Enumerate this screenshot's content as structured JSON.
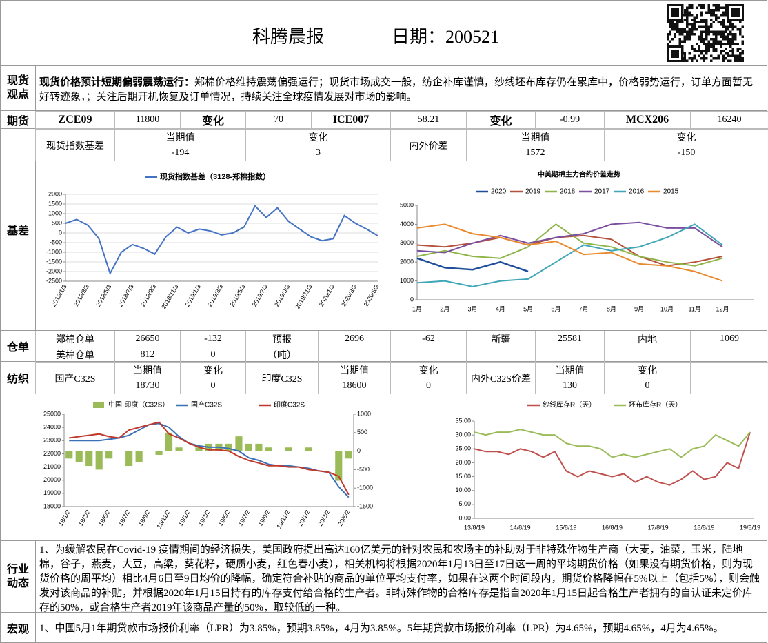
{
  "header": {
    "title": "科腾晨报",
    "date": "日期：200521"
  },
  "spot": {
    "label": "现货观点",
    "lead": "现货价格预计短期偏弱震荡运行：",
    "text": "郑棉价格维持震荡偏强运行；现货市场成交一般，纺企补库谨慎，纱线坯布库存仍在累库中，价格弱势运行，订单方面暂无好转迹象，；关注后期开机恢复及订单情况，持续关注全球疫情发展对市场的影响。"
  },
  "futures": {
    "label": "期货",
    "cells": [
      "ZCE09",
      "11800",
      "变化",
      "70",
      "ICE007",
      "58.21",
      "变化",
      "-0.99",
      "MCX206",
      "16240"
    ]
  },
  "basis": {
    "label": "基差",
    "name": "现货指数基差",
    "name2": "内外价差",
    "head": [
      "当期值",
      "变化",
      "当期值",
      "变化"
    ],
    "values": [
      "-194",
      "3",
      "1572",
      "-150"
    ]
  },
  "warehouse": {
    "label": "仓单",
    "rows": [
      [
        "郑棉仓单",
        "26650",
        "-132",
        "预报",
        "2696",
        "-62",
        "新疆",
        "25581",
        "内地",
        "1069"
      ],
      [
        "美棉仓单",
        "812",
        "0",
        "（吨）"
      ]
    ]
  },
  "textile": {
    "label": "纺织",
    "names": [
      "国产C32S",
      "印度C32S",
      "内外C32S价差"
    ],
    "head": [
      "当期值",
      "变化",
      "当期值",
      "变化",
      "当期值",
      "变化"
    ],
    "values": [
      "18730",
      "0",
      "18600",
      "0",
      "130",
      "0"
    ]
  },
  "industry": {
    "label": "行业动态",
    "text": "1、为缓解农民在Covid-19 疫情期间的经济损失，美国政府提出高达160亿美元的针对农民和农场主的补助对于非特殊作物生产商（大麦，油菜，玉米，陆地棉，谷子，燕麦，大豆，高粱，葵花籽，硬质小麦，红色春小麦），相关机构将根据2020年1月13日至17日这一周的平均期货价格（如果没有期货价格，则为现货价格的周平均）相比4月6日至9日均价的降幅，确定符合补贴的商品的单位平均支付率，如果在这两个时间段内，期货价格降幅在5%以上（包括5%），则会触发对该商品的补贴，并根据2020年1月15日持有的库存支付给合格的生产者。非特殊作物的合格库存是指自2020年1月15日起合格生产者拥有的自认证未定价库存的50%，或合格生产者2019年该商品产量的50%，取较低的一种。"
  },
  "macro": {
    "label": "宏观",
    "text": "1、中国5月1年期贷款市场报价利率（LPR）为3.85%，预期3.85%，4月为3.85%。5年期贷款市场报价利率（LPR）为4.65%，预期4.65%，4月为4.65%。"
  },
  "chart_data": [
    {
      "type": "line",
      "legend": "top",
      "grid": true,
      "categories": [
        "2018/1/3",
        null,
        "2018/3/3",
        null,
        "2018/5/3",
        null,
        "2018/7/3",
        null,
        "2018/9/3",
        null,
        "2018/11/3",
        null,
        "2019/1/3",
        null,
        "2019/3/3",
        null,
        "2019/5/3",
        null,
        "2019/7/3",
        null,
        "2019/9/3",
        null,
        "2019/11/3",
        null,
        "2020/1/3",
        null,
        "2020/3/3",
        null,
        "2020/5/3"
      ],
      "series": [
        {
          "name": "现货指数基差（3128-郑棉指数）",
          "color": "#4472c4",
          "values": [
            500,
            700,
            400,
            -300,
            -2100,
            -1000,
            -600,
            -800,
            -1100,
            -200,
            300,
            0,
            200,
            100,
            -100,
            0,
            300,
            1400,
            800,
            1300,
            600,
            200,
            -200,
            -400,
            -300,
            900,
            500,
            200,
            -150
          ]
        }
      ],
      "ylim": [
        -2500,
        2000
      ],
      "yticks": [
        -2500,
        -2000,
        -1500,
        -1000,
        -500,
        0,
        500,
        1000,
        1500,
        2000
      ]
    },
    {
      "type": "line",
      "title": "中美期棉主力合约价差走势",
      "legend": "top",
      "grid": false,
      "categories": [
        "1月",
        "2月",
        "3月",
        "4月",
        "5月",
        "6月",
        "7月",
        "8月",
        "9月",
        "10月",
        "11月",
        "12月"
      ],
      "series": [
        {
          "name": "2020",
          "color": "#1f4e9a",
          "values": [
            2200,
            1700,
            1600,
            2000,
            1500,
            null,
            null,
            null,
            null,
            null,
            null,
            null
          ]
        },
        {
          "name": "2019",
          "color": "#b5523b",
          "values": [
            2900,
            2800,
            3000,
            3300,
            2900,
            3300,
            3400,
            3200,
            2300,
            1800,
            2000,
            2300
          ]
        },
        {
          "name": "2018",
          "color": "#8fb448",
          "values": [
            2300,
            2600,
            2300,
            2200,
            2800,
            4000,
            3000,
            2800,
            2300,
            2000,
            1800,
            2200
          ]
        },
        {
          "name": "2017",
          "color": "#7a4fa0",
          "values": [
            2600,
            2500,
            3000,
            3400,
            3000,
            3300,
            3500,
            4000,
            4100,
            3800,
            3800,
            2800
          ]
        },
        {
          "name": "2016",
          "color": "#3fa6b8",
          "values": [
            900,
            1000,
            700,
            1000,
            1100,
            2000,
            2900,
            2600,
            2800,
            3300,
            4000,
            2900
          ]
        },
        {
          "name": "2015",
          "color": "#e98a2e",
          "values": [
            3800,
            4000,
            3500,
            3300,
            2900,
            3100,
            2400,
            2500,
            1900,
            1800,
            1500,
            1000
          ]
        }
      ],
      "ylim": [
        0,
        5000
      ],
      "yticks": [
        0,
        1000,
        2000,
        3000,
        4000,
        5000
      ]
    },
    {
      "type": "combo",
      "legend": "top",
      "grid": false,
      "categories": [
        "18/1/2",
        null,
        "18/3/2",
        null,
        "18/5/2",
        null,
        "18/7/2",
        null,
        "18/9/2",
        null,
        "18/11/2",
        null,
        "19/1/2",
        null,
        "19/3/2",
        null,
        "19/5/2",
        null,
        "19/7/2",
        null,
        "19/9/2",
        null,
        "19/11/2",
        null,
        "20/1/2",
        null,
        "20/3/2",
        null,
        "20/5/2"
      ],
      "series": [
        {
          "name": "中国-印度（C32S）",
          "color": "#9bbb59",
          "mark": "bar",
          "axis": "y2",
          "values": [
            -200,
            -300,
            -400,
            -500,
            -200,
            0,
            -400,
            -300,
            0,
            -100,
            500,
            100,
            0,
            100,
            200,
            200,
            200,
            400,
            200,
            200,
            100,
            0,
            100,
            0,
            100,
            0,
            0,
            -800,
            -200
          ]
        },
        {
          "name": "国产C32S",
          "color": "#3a70b8",
          "values": [
            23000,
            23000,
            23000,
            23000,
            23100,
            23200,
            23400,
            23800,
            24200,
            24300,
            24000,
            23300,
            22800,
            22600,
            22500,
            22500,
            22400,
            22200,
            21700,
            21500,
            21200,
            21100,
            21100,
            21000,
            20900,
            20700,
            20600,
            19500,
            18700
          ]
        },
        {
          "name": "印度C32S",
          "color": "#c0392b",
          "values": [
            23200,
            23300,
            23400,
            23500,
            23300,
            23200,
            23800,
            24000,
            24200,
            24400,
            23500,
            23200,
            22800,
            22500,
            22300,
            22300,
            22200,
            21800,
            21500,
            21300,
            21100,
            21100,
            21000,
            21000,
            20800,
            20700,
            20600,
            20300,
            18900
          ]
        }
      ],
      "ylim": [
        18000,
        25000
      ],
      "yticks": [
        18000,
        19000,
        20000,
        21000,
        22000,
        23000,
        24000,
        25000
      ],
      "y2lim": [
        -1500,
        1000
      ],
      "y2ticks": [
        -1500,
        -1000,
        -500,
        0,
        500,
        1000
      ]
    },
    {
      "type": "line",
      "legend": "top",
      "grid": false,
      "categories": [
        "13/8/19",
        null,
        null,
        null,
        "14/8/19",
        null,
        null,
        null,
        "15/8/19",
        null,
        null,
        null,
        "16/8/19",
        null,
        null,
        null,
        "17/8/19",
        null,
        null,
        null,
        "18/8/19",
        null,
        null,
        null,
        "19/8/19"
      ],
      "series": [
        {
          "name": "纱线库存R（天）",
          "color": "#c0504d",
          "values": [
            25,
            24,
            24,
            23,
            25,
            24,
            22,
            24,
            17,
            15,
            17,
            16,
            15,
            16,
            13,
            15,
            13,
            12,
            14,
            17,
            14,
            15,
            20,
            18,
            31
          ]
        },
        {
          "name": "坯布库存R（天）",
          "color": "#9bbb59",
          "values": [
            31,
            30,
            31,
            31,
            32,
            31,
            30,
            30,
            27,
            26,
            26,
            25,
            22,
            23,
            22,
            23,
            24,
            25,
            22,
            25,
            26,
            30,
            28,
            26,
            31
          ]
        }
      ],
      "ylim": [
        0,
        35
      ],
      "yticks": [
        {
          "value": 0,
          "label": "0.00"
        },
        {
          "value": 5,
          "label": "5.00"
        },
        {
          "value": 10,
          "label": "10.00"
        },
        {
          "value": 15,
          "label": "15.00"
        },
        {
          "value": 20,
          "label": "20.00"
        },
        {
          "value": 25,
          "label": "25.00"
        },
        {
          "value": 30,
          "label": "30.00"
        },
        {
          "value": 35,
          "label": "35.00"
        }
      ]
    }
  ]
}
